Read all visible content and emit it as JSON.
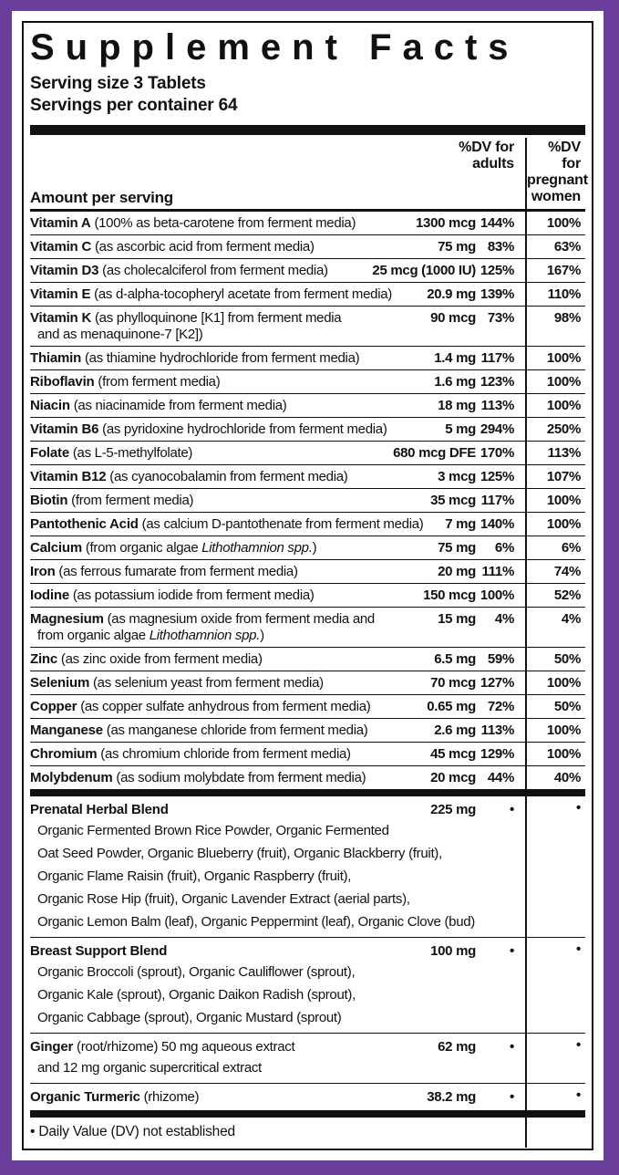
{
  "colors": {
    "frame_purple": "#6a3d9b",
    "ink": "#111111",
    "background": "#ffffff"
  },
  "header": {
    "title": "Supplement Facts",
    "serving_size": "Serving size 3 Tablets",
    "servings_per_container": "Servings per container 64"
  },
  "columns": {
    "amount_label": "Amount per serving",
    "dv_adults_label": "%DV for\nadults",
    "dv_pregnant_label": "%DV for\npregnant\nwomen"
  },
  "nutrient_rows": [
    {
      "name": "Vitamin A",
      "desc": "(100% as beta-carotene from ferment media)",
      "amount": "1300 mcg",
      "adults": "144%",
      "pregnant": "100%"
    },
    {
      "name": "Vitamin C",
      "desc": "(as ascorbic acid from ferment media)",
      "amount": "75 mg",
      "adults": "83%",
      "pregnant": "63%"
    },
    {
      "name": "Vitamin D3",
      "desc": "(as cholecalciferol from ferment media)",
      "amount": "25 mcg (1000 IU)",
      "adults": "125%",
      "pregnant": "167%"
    },
    {
      "name": "Vitamin E",
      "desc": "(as d-alpha-tocopheryl acetate from ferment media)",
      "amount": "20.9 mg",
      "adults": "139%",
      "pregnant": "110%"
    },
    {
      "name": "Vitamin K",
      "desc": "(as phylloquinone [K1] from ferment media",
      "amount": "90 mcg",
      "adults": "73%",
      "pregnant": "98%",
      "cont": [
        "and as menaquinone-7 [K2])"
      ]
    },
    {
      "name": "Thiamin",
      "desc": "(as thiamine hydrochloride from ferment media)",
      "amount": "1.4 mg",
      "adults": "117%",
      "pregnant": "100%"
    },
    {
      "name": "Riboflavin",
      "desc": "(from ferment media)",
      "amount": "1.6 mg",
      "adults": "123%",
      "pregnant": "100%"
    },
    {
      "name": "Niacin",
      "desc": "(as niacinamide from ferment media)",
      "amount": "18 mg",
      "adults": "113%",
      "pregnant": "100%"
    },
    {
      "name": "Vitamin B6",
      "desc": "(as pyridoxine hydrochloride from ferment media)",
      "amount": "5 mg",
      "adults": "294%",
      "pregnant": "250%"
    },
    {
      "name": "Folate",
      "desc": "(as L-5-methylfolate)",
      "amount": "680 mcg DFE",
      "adults": "170%",
      "pregnant": "113%"
    },
    {
      "name": "Vitamin B12",
      "desc": "(as cyanocobalamin from ferment media)",
      "amount": "3 mcg",
      "adults": "125%",
      "pregnant": "107%"
    },
    {
      "name": "Biotin",
      "desc": "(from ferment media)",
      "amount": "35 mcg",
      "adults": "117%",
      "pregnant": "100%"
    },
    {
      "name": "Pantothenic Acid",
      "desc": "(as calcium D-pantothenate from ferment media)",
      "amount": "7 mg",
      "adults": "140%",
      "pregnant": "100%"
    },
    {
      "name": "Calcium",
      "desc": [
        "(from organic algae ",
        {
          "i": "Lithothamnion spp."
        },
        ")"
      ],
      "amount": "75 mg",
      "adults": "6%",
      "pregnant": "6%"
    },
    {
      "name": "Iron",
      "desc": "(as ferrous fumarate from ferment media)",
      "amount": "20 mg",
      "adults": "111%",
      "pregnant": "74%"
    },
    {
      "name": "Iodine",
      "desc": "(as potassium iodide from ferment media)",
      "amount": "150 mcg",
      "adults": "100%",
      "pregnant": "52%"
    },
    {
      "name": "Magnesium",
      "desc": "(as magnesium oxide from ferment media and",
      "amount": "15 mg",
      "adults": "4%",
      "pregnant": "4%",
      "cont": [
        [
          "from organic algae ",
          {
            "i": "Lithothamnion spp."
          },
          ")"
        ]
      ]
    },
    {
      "name": "Zinc",
      "desc": "(as zinc oxide from ferment media)",
      "amount": "6.5 mg",
      "adults": "59%",
      "pregnant": "50%"
    },
    {
      "name": "Selenium",
      "desc": "(as selenium yeast from ferment media)",
      "amount": "70 mcg",
      "adults": "127%",
      "pregnant": "100%"
    },
    {
      "name": "Copper",
      "desc": "(as copper sulfate anhydrous from ferment media)",
      "amount": "0.65 mg",
      "adults": "72%",
      "pregnant": "50%"
    },
    {
      "name": "Manganese",
      "desc": "(as manganese chloride from ferment media)",
      "amount": "2.6 mg",
      "adults": "113%",
      "pregnant": "100%"
    },
    {
      "name": "Chromium",
      "desc": "(as chromium chloride from ferment media)",
      "amount": "45 mcg",
      "adults": "129%",
      "pregnant": "100%"
    },
    {
      "name": "Molybdenum",
      "desc": "(as sodium molybdate from ferment media)",
      "amount": "20 mcg",
      "adults": "44%",
      "pregnant": "40%"
    }
  ],
  "blend_rows": [
    {
      "name": "Prenatal Herbal Blend",
      "desc": "",
      "amount": "225 mg",
      "adults": "•",
      "pregnant": "•",
      "cont": [
        "Organic Fermented Brown Rice Powder, Organic Fermented",
        "Oat Seed Powder,  Organic Blueberry (fruit), Organic Blackberry (fruit),",
        "Organic Flame Raisin (fruit), Organic Raspberry (fruit),",
        "Organic Rose Hip (fruit), Organic Lavender Extract (aerial parts),",
        "Organic Lemon Balm (leaf), Organic Peppermint (leaf), Organic Clove (bud)"
      ]
    },
    {
      "name": "Breast Support Blend",
      "desc": "",
      "amount": "100 mg",
      "adults": "•",
      "pregnant": "•",
      "cont": [
        "Organic Broccoli (sprout), Organic Cauliflower (sprout),",
        "Organic Kale (sprout), Organic Daikon Radish (sprout),",
        "Organic Cabbage (sprout), Organic Mustard (sprout)"
      ]
    },
    {
      "name": "Ginger",
      "desc": "(root/rhizome) 50 mg aqueous extract",
      "amount": "62 mg",
      "adults": "•",
      "pregnant": "•",
      "cont": [
        "and 12 mg organic supercritical extract"
      ]
    },
    {
      "name": "Organic Turmeric",
      "desc": "(rhizome)",
      "amount": "38.2 mg",
      "adults": "•",
      "pregnant": "•"
    }
  ],
  "footer": {
    "note": "• Daily Value (DV) not established"
  }
}
